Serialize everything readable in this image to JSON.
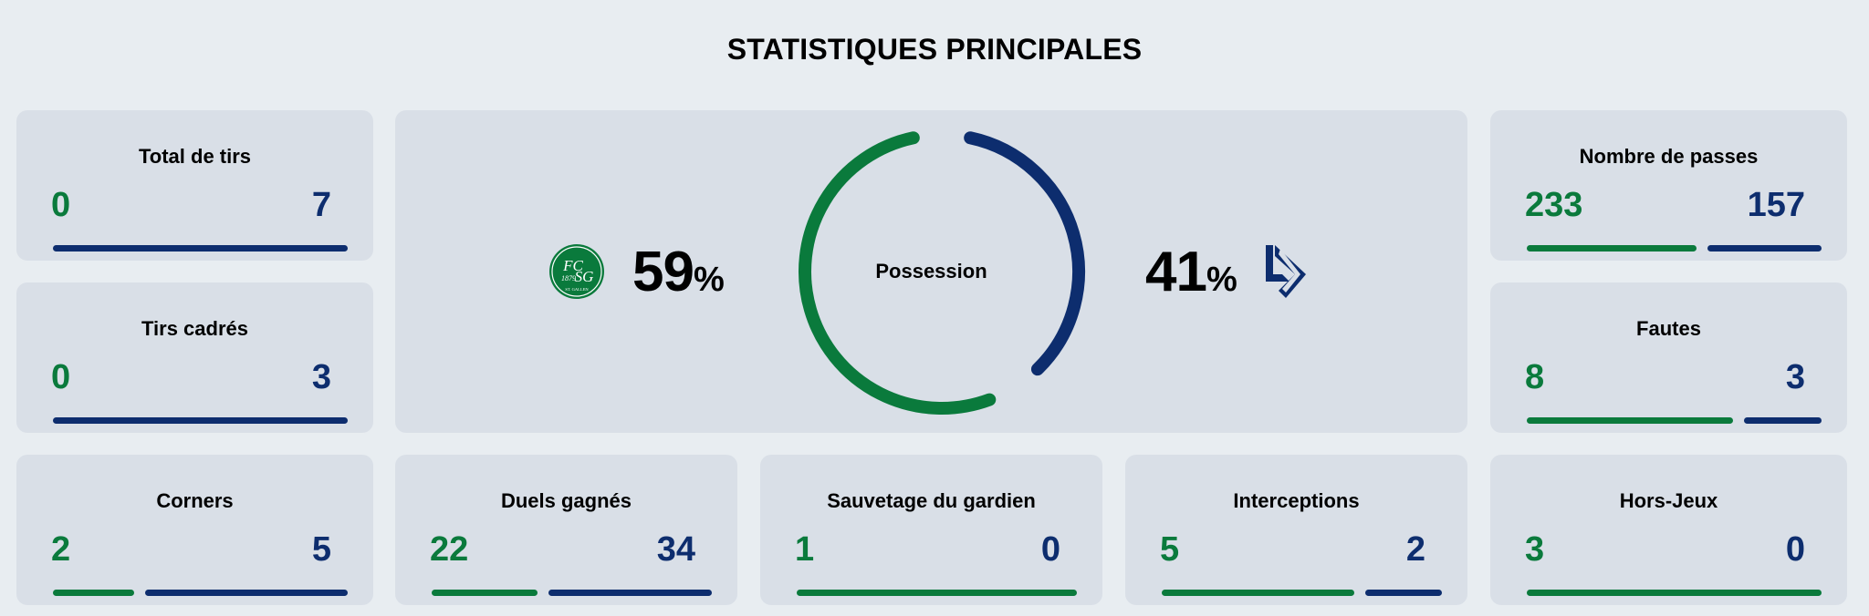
{
  "title": "STATISTIQUES PRINCIPALES",
  "colors": {
    "home": "#0a7a3c",
    "away": "#0d2d6e",
    "page_bg": "#e8edf1",
    "card_bg": "#d9dfe7"
  },
  "teams": {
    "home": {
      "name": "FC St. Gallen 1879",
      "logo": "fcsg-crest-icon",
      "logo_text_top": "FC",
      "logo_text_mid": "1879SG",
      "logo_text_bottom": "ST. GALLEN"
    },
    "away": {
      "name": "FC Lausanne-Sport",
      "logo": "ls-monogram-icon"
    }
  },
  "possession": {
    "label": "Possession",
    "home_value": "59",
    "away_value": "41",
    "unit": "%"
  },
  "stats": [
    {
      "id": "total-shots",
      "label": "Total de tirs",
      "home": "0",
      "away": "7"
    },
    {
      "id": "shots-on-target",
      "label": "Tirs cadrés",
      "home": "0",
      "away": "3"
    },
    {
      "id": "passes",
      "label": "Nombre de passes",
      "home": "233",
      "away": "157"
    },
    {
      "id": "fouls",
      "label": "Fautes",
      "home": "8",
      "away": "3"
    },
    {
      "id": "corners",
      "label": "Corners",
      "home": "2",
      "away": "5"
    },
    {
      "id": "duels-won",
      "label": "Duels gagnés",
      "home": "22",
      "away": "34"
    },
    {
      "id": "goalkeeper-saves",
      "label": "Sauvetage du gardien",
      "home": "1",
      "away": "0"
    },
    {
      "id": "interceptions",
      "label": "Interceptions",
      "home": "5",
      "away": "2"
    },
    {
      "id": "offsides",
      "label": "Hors-Jeux",
      "home": "3",
      "away": "0"
    }
  ]
}
